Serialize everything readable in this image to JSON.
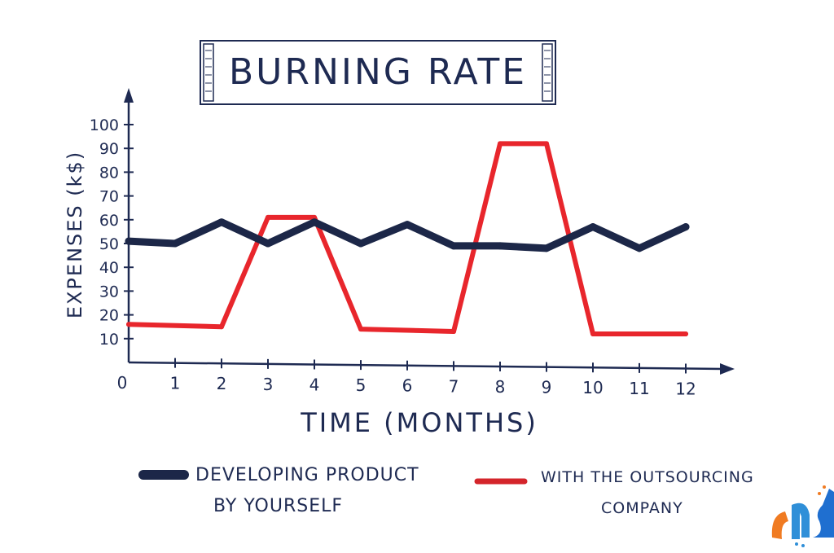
{
  "chart_data": {
    "type": "line",
    "title": "BURNING RATE",
    "xlabel": "TIME (MONTHS)",
    "ylabel": "EXPENSES (k$)",
    "xlim": [
      0,
      12
    ],
    "ylim": [
      0,
      100
    ],
    "x_ticks": [
      "0",
      "1",
      "2",
      "3",
      "4",
      "5",
      "6",
      "7",
      "8",
      "9",
      "10",
      "11",
      "12"
    ],
    "y_ticks": [
      "10",
      "20",
      "30",
      "40",
      "50",
      "60",
      "70",
      "80",
      "90",
      "100"
    ],
    "grid": false,
    "legend_position": "bottom",
    "series": [
      {
        "name": "DEVELOPING PRODUCT BY YOURSELF",
        "color": "#1c2748",
        "x": [
          0,
          1,
          2,
          3,
          4,
          5,
          6,
          7,
          8,
          9,
          10,
          11,
          12
        ],
        "values": [
          51,
          50,
          59,
          50,
          59,
          50,
          58,
          49,
          49,
          48,
          57,
          48,
          57
        ]
      },
      {
        "name": "WITH THE OUTSOURCING COMPANY",
        "color": "#e8262c",
        "x": [
          0,
          2,
          3,
          4,
          5,
          7,
          8,
          9,
          10,
          12
        ],
        "values": [
          16,
          15,
          61,
          61,
          14,
          13,
          92,
          92,
          12,
          12
        ]
      }
    ]
  }
}
